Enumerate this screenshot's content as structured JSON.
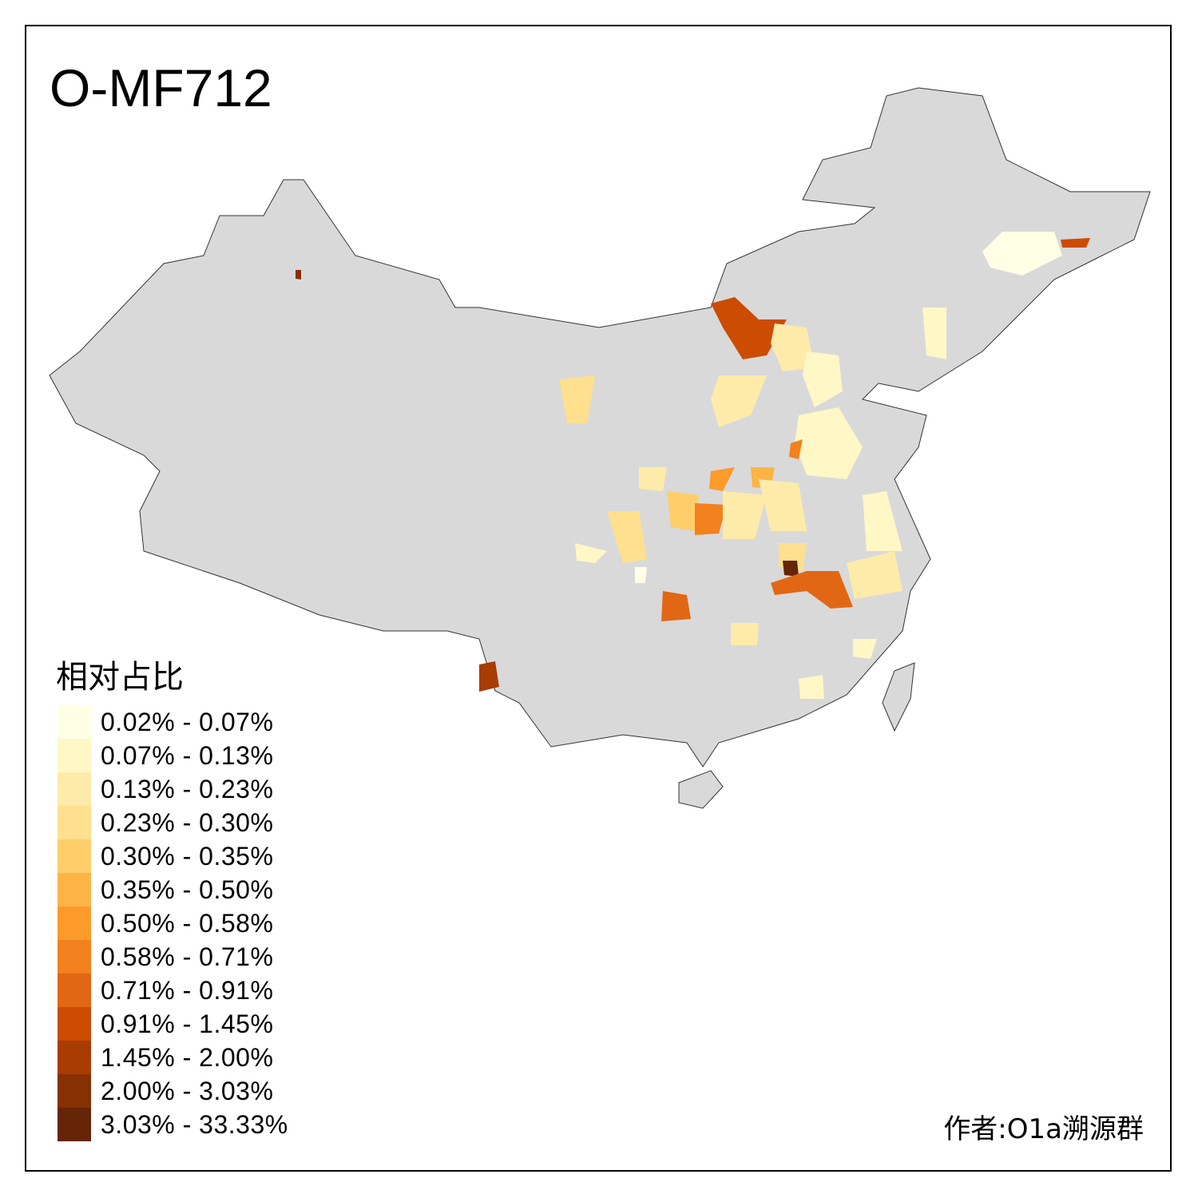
{
  "title": "O-MF712",
  "legend": {
    "title": "相对占比",
    "items": [
      {
        "label": "0.02% - 0.07%",
        "color": "#FFFFE5"
      },
      {
        "label": "0.07% - 0.13%",
        "color": "#FFF7C6"
      },
      {
        "label": "0.13% - 0.23%",
        "color": "#FEEBAA"
      },
      {
        "label": "0.23% - 0.30%",
        "color": "#FEE08E"
      },
      {
        "label": "0.30% - 0.35%",
        "color": "#FECE6A"
      },
      {
        "label": "0.35% - 0.50%",
        "color": "#FDB446"
      },
      {
        "label": "0.50% - 0.58%",
        "color": "#FC9A2A"
      },
      {
        "label": "0.58% - 0.71%",
        "color": "#F2811E"
      },
      {
        "label": "0.71% - 0.91%",
        "color": "#E16715"
      },
      {
        "label": "0.91% - 1.45%",
        "color": "#CC4C02"
      },
      {
        "label": "1.45% - 2.00%",
        "color": "#A83C03"
      },
      {
        "label": "2.00% - 3.03%",
        "color": "#863004"
      },
      {
        "label": "3.03% - 33.33%",
        "color": "#662506"
      }
    ]
  },
  "base_color": "#D9D9D9",
  "credit": "作者:O1a溯源群"
}
